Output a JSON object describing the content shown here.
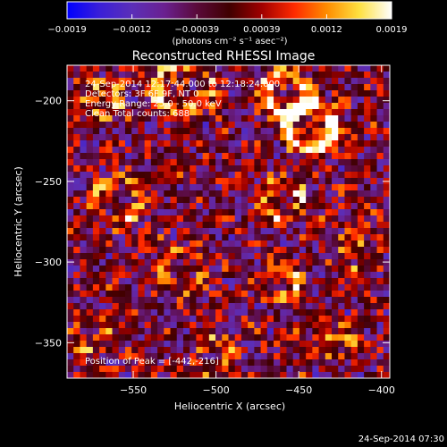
{
  "chart_data": {
    "type": "heatmap",
    "title": "Reconstructed RHESSI Image",
    "xlabel": "Heliocentric X (arcsec)",
    "ylabel": "Heliocentric Y (arcsec)",
    "xlim": [
      -590,
      -395
    ],
    "ylim": [
      -372,
      -178
    ],
    "x_ticks": [
      -550,
      -500,
      -450,
      -400
    ],
    "y_ticks": [
      -200,
      -250,
      -300,
      -350
    ],
    "x_tick_labels": [
      "−550",
      "−500",
      "−450",
      "−400"
    ],
    "y_tick_labels": [
      "−200",
      "−250",
      "−300",
      "−350"
    ],
    "annotations": [
      "24-Sep-2014 12:17:44.000 to 12:18:24.000",
      "Detectors: 3F 6F 9F, NT 0",
      "Energy Range: 25.0 - 50.0 keV",
      "Clean    Total counts: 688",
      "Position of Peak = [-442,-216]"
    ],
    "peak": {
      "x": -442,
      "y": -216
    },
    "grid": {
      "cols": 50,
      "rows": 50
    },
    "colorbar": {
      "range": [
        -0.0019,
        0.0019
      ],
      "tick_labels": [
        "−0.0019",
        "−0.0012",
        "−0.00039",
        "0.00039",
        "0.0012",
        "0.0019"
      ],
      "label": "(photons cm⁻² s⁻¹ asec⁻²)",
      "colors": [
        "#0000ff",
        "#3a1fd8",
        "#5b2fb8",
        "#6a2090",
        "#5a0a3a",
        "#400000",
        "#a00000",
        "#ff2a00",
        "#ff8c00",
        "#ffe040",
        "#ffffff"
      ]
    }
  },
  "footer": {
    "timestamp": "24-Sep-2014 07:30"
  }
}
